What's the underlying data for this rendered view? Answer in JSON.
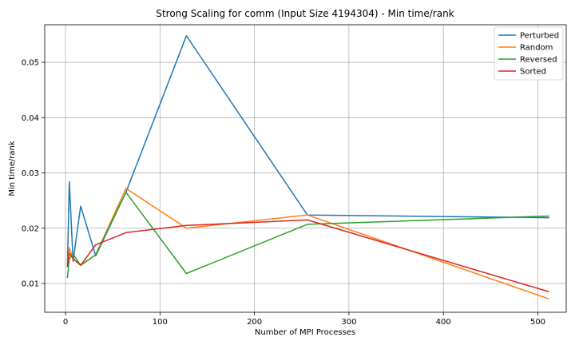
{
  "chart_data": {
    "type": "line",
    "title": "Strong Scaling for comm (Input Size 4194304) - Min time/rank",
    "xlabel": "Number of MPI Processes",
    "ylabel": "Min time/rank",
    "xlim": [
      -22,
      530
    ],
    "ylim": [
      0.0048,
      0.0568
    ],
    "xticks": [
      0,
      100,
      200,
      300,
      400,
      500
    ],
    "yticks": [
      0.01,
      0.02,
      0.03,
      0.04,
      0.05
    ],
    "xtick_labels": [
      "0",
      "100",
      "200",
      "300",
      "400",
      "500"
    ],
    "ytick_labels": [
      "0.01",
      "0.02",
      "0.03",
      "0.04",
      "0.05"
    ],
    "grid": true,
    "legend_position": "top-right",
    "x": [
      2,
      4,
      8,
      16,
      32,
      64,
      128,
      256,
      512
    ],
    "series": [
      {
        "name": "Perturbed",
        "color": "#1f77b4",
        "values": [
          0.013,
          0.0284,
          0.014,
          0.024,
          0.015,
          0.0265,
          0.0548,
          0.0224,
          0.0219
        ]
      },
      {
        "name": "Random",
        "color": "#ff7f0e",
        "values": [
          0.013,
          0.0165,
          0.0145,
          0.0133,
          0.0152,
          0.0272,
          0.02,
          0.0224,
          0.0072
        ]
      },
      {
        "name": "Reversed",
        "color": "#2ca02c",
        "values": [
          0.011,
          0.0145,
          0.0153,
          0.0133,
          0.0152,
          0.0265,
          0.0118,
          0.0207,
          0.0222
        ]
      },
      {
        "name": "Sorted",
        "color": "#d62728",
        "values": [
          0.013,
          0.0155,
          0.0145,
          0.0133,
          0.017,
          0.0192,
          0.0205,
          0.0215,
          0.0085
        ]
      }
    ]
  }
}
